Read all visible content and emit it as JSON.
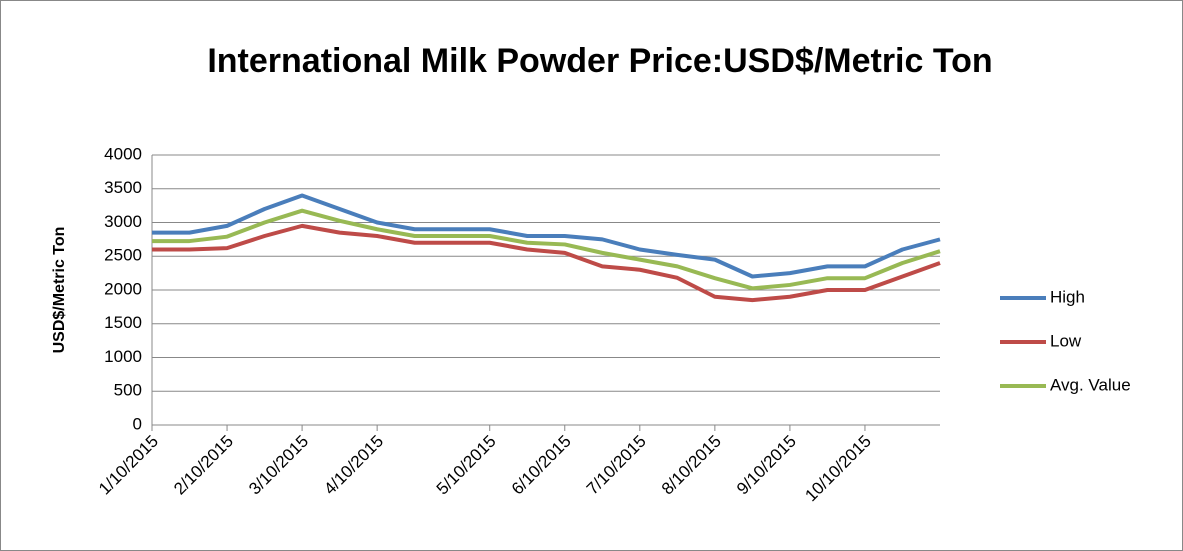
{
  "chart_data": {
    "type": "line",
    "title": "International Milk Powder Price:USD$/Metric Ton",
    "y_label": "USD$/Metric Ton",
    "categories": [
      "1/10/2015",
      null,
      "2/10/2015",
      null,
      "3/10/2015",
      null,
      "4/10/2015",
      null,
      null,
      "5/10/2015",
      null,
      "6/10/2015",
      null,
      "7/10/2015",
      null,
      "8/10/2015",
      null,
      "9/10/2015",
      null,
      "10/10/2015",
      null,
      null
    ],
    "series": [
      {
        "name": "High",
        "color": "#4a7ebb",
        "values": [
          2850,
          2850,
          2950,
          3200,
          3400,
          3200,
          3000,
          2900,
          2900,
          2900,
          2800,
          2800,
          2750,
          2600,
          2520,
          2450,
          2200,
          2250,
          2350,
          2350,
          2600,
          2750
        ]
      },
      {
        "name": "Low",
        "color": "#be4b48",
        "values": [
          2600,
          2600,
          2620,
          2800,
          2950,
          2850,
          2800,
          2700,
          2700,
          2700,
          2600,
          2550,
          2350,
          2300,
          2180,
          1900,
          1850,
          1900,
          2000,
          2000,
          2200,
          2400
        ]
      },
      {
        "name": "Avg. Value",
        "color": "#98b954",
        "values": [
          2725,
          2725,
          2790,
          3000,
          3175,
          3025,
          2900,
          2800,
          2800,
          2800,
          2700,
          2675,
          2550,
          2450,
          2350,
          2175,
          2025,
          2075,
          2175,
          2175,
          2400,
          2575
        ]
      }
    ],
    "ylim": [
      0,
      4000
    ],
    "yticks": [
      0,
      500,
      1000,
      1500,
      2000,
      2500,
      3000,
      3500,
      4000
    ],
    "grid": true,
    "legend": "right"
  }
}
